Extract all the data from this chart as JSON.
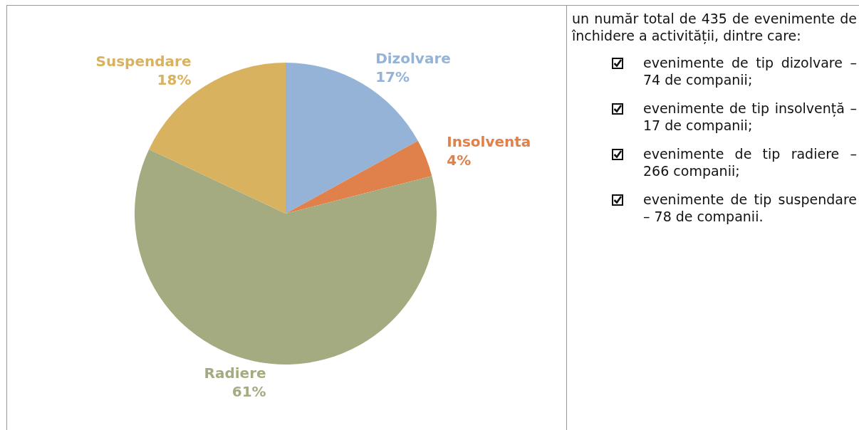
{
  "chart_data": [
    {
      "type": "pie",
      "categories": [
        "Dizolvare",
        "Insolventa",
        "Radiere",
        "Suspendare"
      ],
      "values": [
        17,
        4,
        61,
        18
      ],
      "colors": [
        "#95b3d7",
        "#e0804a",
        "#a4ab80",
        "#d9b25f"
      ],
      "value_labels": [
        "17%",
        "4%",
        "61%",
        "18%"
      ]
    },
    {
      "type": "other",
      "annotations": [
        "un număr total de 435 de evenimente de închidere a activității, dintre care:",
        "evenimente de tip dizolvare – 74 de companii;",
        "evenimente de tip insolvență – 17 de companii;",
        "evenimente de tip radiere – 266 companii;",
        "evenimente de tip suspendare – 78 de companii."
      ]
    }
  ]
}
